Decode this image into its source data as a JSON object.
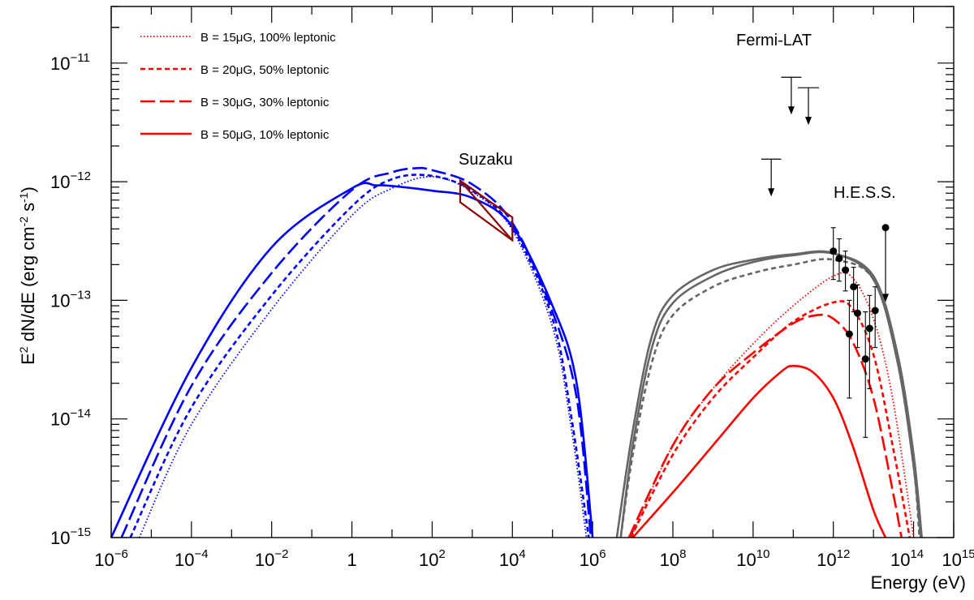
{
  "chart_data": {
    "type": "line",
    "title": "",
    "xlabel": "Energy (eV)",
    "ylabel": "E2 dN/dE (erg cm-2 s-1)",
    "xscale": "log",
    "yscale": "log",
    "xlim": [
      1e-06,
      1000000000000000.0
    ],
    "ylim": [
      1e-15,
      3e-11
    ],
    "x_ticks": [
      {
        "value": 1e-06,
        "label": "10",
        "exp": "−6"
      },
      {
        "value": 0.0001,
        "label": "10",
        "exp": "−4"
      },
      {
        "value": 0.01,
        "label": "10",
        "exp": "−2"
      },
      {
        "value": 1,
        "label": "1",
        "exp": ""
      },
      {
        "value": 100.0,
        "label": "10",
        "exp": "2"
      },
      {
        "value": 10000.0,
        "label": "10",
        "exp": "4"
      },
      {
        "value": 1000000.0,
        "label": "10",
        "exp": "6"
      },
      {
        "value": 100000000.0,
        "label": "10",
        "exp": "8"
      },
      {
        "value": 10000000000.0,
        "label": "10",
        "exp": "10"
      },
      {
        "value": 1000000000000.0,
        "label": "10",
        "exp": "12"
      },
      {
        "value": 100000000000000.0,
        "label": "10",
        "exp": "14"
      },
      {
        "value": 1000000000000000.0,
        "label": "10",
        "exp": "15"
      }
    ],
    "y_ticks": [
      {
        "value": 1e-15,
        "label": "10",
        "exp": "−15"
      },
      {
        "value": 1e-14,
        "label": "10",
        "exp": "−14"
      },
      {
        "value": 1e-13,
        "label": "10",
        "exp": "−13"
      },
      {
        "value": 1e-12,
        "label": "10",
        "exp": "−12"
      },
      {
        "value": 1e-11,
        "label": "10",
        "exp": "−11"
      }
    ],
    "legend": {
      "placement": "top-left",
      "entries": [
        {
          "text": "B = 15μG, 100% leptonic",
          "color": "#ff0000",
          "style": "dotted"
        },
        {
          "text": "B = 20μG, 50%  leptonic",
          "color": "#ff0000",
          "style": "short-dash"
        },
        {
          "text": "B = 30μG, 30%  leptonic",
          "color": "#ff0000",
          "style": "long-dash"
        },
        {
          "text": "B = 50μG, 10%  leptonic",
          "color": "#ff0000",
          "style": "solid"
        }
      ]
    },
    "annotations": {
      "suzaku": "Suzaku",
      "fermi": "Fermi-LAT",
      "hess": "H.E.S.S."
    },
    "series": [
      {
        "name": "Synchrotron B=15μG",
        "color": "#0000ff",
        "style": "dotted",
        "x": [
          5e-06,
          0.0001,
          0.01,
          1,
          10,
          100,
          1000,
          10000.0,
          100000.0,
          300000.0,
          700000.0
        ],
        "y": [
          1e-15,
          9e-15,
          8.4e-14,
          5.2e-13,
          8.8e-13,
          1.1e-12,
          8.2e-13,
          3.9e-13,
          6e-14,
          8e-15,
          1e-15
        ]
      },
      {
        "name": "Synchrotron B=20μG",
        "color": "#0000ff",
        "style": "short-dash",
        "x": [
          3e-06,
          0.0001,
          0.01,
          1,
          10,
          100,
          1000,
          10000.0,
          100000.0,
          300000.0,
          800000.0
        ],
        "y": [
          1e-15,
          1.25e-14,
          1.1e-13,
          6.2e-13,
          1.05e-12,
          1.12e-12,
          8.4e-13,
          4.1e-13,
          7e-14,
          1e-14,
          1e-15
        ]
      },
      {
        "name": "Synchrotron B=30μG",
        "color": "#0000ff",
        "style": "long-dash",
        "x": [
          1.8e-06,
          0.0001,
          0.01,
          1,
          10,
          40,
          100,
          1000,
          10000.0,
          100000.0,
          400000.0,
          900000.0
        ],
        "y": [
          1e-15,
          1.9e-14,
          1.7e-13,
          8.5e-13,
          1.2e-12,
          1.3e-12,
          1.25e-12,
          9.5e-13,
          4.5e-13,
          8e-14,
          1.5e-14,
          1e-15
        ]
      },
      {
        "name": "Synchrotron B=50μG",
        "color": "#0000ff",
        "style": "solid",
        "x": [
          1e-06,
          0.0001,
          0.01,
          1,
          4,
          10,
          100,
          1000,
          10000.0,
          100000.0,
          400000.0,
          1000000.0
        ],
        "y": [
          1e-15,
          2.7e-14,
          2.8e-13,
          8.8e-13,
          9.3e-13,
          9.2e-13,
          8.4e-13,
          7.3e-13,
          4.2e-13,
          9e-14,
          2e-14,
          1e-15
        ]
      },
      {
        "name": "IC B=15μG",
        "color": "#ff0000",
        "style": "dotted",
        "x": [
          9000000.0,
          100000000.0,
          1000000000.0,
          10000000000.0,
          100000000000.0,
          1000000000000.0,
          3000000000000.0,
          10000000000000.0,
          30000000000000.0,
          100000000000000.0
        ],
        "y": [
          1e-15,
          6e-15,
          1.8e-14,
          4.3e-14,
          9e-14,
          1.6e-13,
          1.55e-13,
          7e-14,
          1.5e-14,
          1e-15
        ]
      },
      {
        "name": "IC B=20μG",
        "color": "#ff0000",
        "style": "short-dash",
        "x": [
          9000000.0,
          100000000.0,
          1000000000.0,
          10000000000.0,
          100000000000.0,
          1000000000000.0,
          3000000000000.0,
          10000000000000.0,
          30000000000000.0,
          80000000000000.0
        ],
        "y": [
          1e-15,
          5e-15,
          1.5e-14,
          3.3e-14,
          6.6e-14,
          9.6e-14,
          8.5e-14,
          3.5e-14,
          6e-15,
          1e-15
        ]
      },
      {
        "name": "IC B=30μG",
        "color": "#ff0000",
        "style": "long-dash",
        "x": [
          8000000.0,
          100000000.0,
          1000000000.0,
          10000000000.0,
          100000000000.0,
          400000000000.0,
          1000000000000.0,
          3000000000000.0,
          10000000000000.0,
          30000000000000.0,
          50000000000000.0
        ],
        "y": [
          1e-15,
          6e-15,
          1.8e-14,
          3.6e-14,
          6.4e-14,
          7.5e-14,
          7e-14,
          4.5e-14,
          1.5e-14,
          2.5e-15,
          1e-15
        ]
      },
      {
        "name": "IC B=50μG",
        "color": "#ff0000",
        "style": "solid",
        "x": [
          10000000.0,
          100000000.0,
          1000000000.0,
          10000000000.0,
          50000000000.0,
          100000000000.0,
          300000000000.0,
          1000000000000.0,
          3000000000000.0,
          10000000000000.0,
          20000000000000.0
        ],
        "y": [
          1e-15,
          2.4e-15,
          6e-15,
          1.5e-14,
          2.5e-14,
          2.8e-14,
          2.5e-14,
          1.5e-14,
          6e-15,
          1.7e-15,
          1e-15
        ]
      },
      {
        "name": "Total gamma (grey solid)",
        "color": "#666666",
        "style": "solid",
        "x": [
          4000000.0,
          10000000.0,
          30000000.0,
          100000000.0,
          1000000000.0,
          10000000000.0,
          100000000000.0,
          1000000000000.0,
          10000000000000.0,
          40000000000000.0,
          100000000000000.0,
          150000000000000.0
        ],
        "y": [
          1e-15,
          8e-15,
          5e-14,
          1.1e-13,
          1.8e-13,
          2.2e-13,
          2.45e-13,
          2.5e-13,
          1.5e-13,
          3e-14,
          4e-15,
          1e-15
        ]
      },
      {
        "name": "Total gamma (grey solid 2)",
        "color": "#666666",
        "style": "solid",
        "x": [
          5000000.0,
          10000000.0,
          30000000.0,
          100000000.0,
          1000000000.0,
          10000000000.0,
          100000000000.0,
          1000000000000.0,
          10000000000000.0,
          40000000000000.0,
          100000000000000.0,
          160000000000000.0
        ],
        "y": [
          1e-15,
          6e-15,
          4e-14,
          9.5e-14,
          1.6e-13,
          2.1e-13,
          2.4e-13,
          2.48e-13,
          1.6e-13,
          3.5e-14,
          5e-15,
          1e-15
        ]
      },
      {
        "name": "Total gamma (grey dashed)",
        "color": "#666666",
        "style": "short-dash",
        "x": [
          5000000.0,
          10000000.0,
          30000000.0,
          100000000.0,
          1000000000.0,
          10000000000.0,
          100000000000.0,
          1000000000000.0,
          10000000000000.0,
          40000000000000.0,
          100000000000000.0,
          140000000000000.0
        ],
        "y": [
          1e-15,
          5e-15,
          3e-14,
          7.5e-14,
          1.3e-13,
          1.7e-13,
          2e-13,
          2.2e-13,
          1.5e-13,
          3e-14,
          4e-15,
          1e-15
        ]
      }
    ],
    "suzaku_bowtie": [
      {
        "x": 500,
        "y": 1.02e-12
      },
      {
        "x": 10000.0,
        "y": 5e-13
      },
      {
        "x": 10000.0,
        "y": 3.2e-13
      },
      {
        "x": 500,
        "y": 6.7e-13
      }
    ],
    "hess_points": [
      {
        "x": 1000000000000.0,
        "y": 2.6e-13,
        "lo": 1.5e-13,
        "hi": 4.1e-13
      },
      {
        "x": 1400000000000.0,
        "y": 2.25e-13,
        "lo": 1.45e-13,
        "hi": 3.3e-13
      },
      {
        "x": 2000000000000.0,
        "y": 1.8e-13,
        "lo": 1.2e-13,
        "hi": 2.6e-13
      },
      {
        "x": 3200000000000.0,
        "y": 1.3e-13,
        "lo": 8e-14,
        "hi": 1.9e-13
      },
      {
        "x": 4000000000000.0,
        "y": 7.8e-14,
        "lo": 4e-14,
        "hi": 1.35e-13
      },
      {
        "x": 2500000000000.0,
        "y": 5.2e-14,
        "lo": 1.5e-14,
        "hi": 1e-13
      },
      {
        "x": 6300000000000.0,
        "y": 3.2e-14,
        "lo": 7e-15,
        "hi": 8e-14
      },
      {
        "x": 8000000000000.0,
        "y": 5.8e-14,
        "lo": 1.8e-14,
        "hi": 1.1e-13
      },
      {
        "x": 11000000000000.0,
        "y": 8.2e-14,
        "lo": 4e-14,
        "hi": 1.3e-13
      }
    ],
    "hess_upper_limit": {
      "x": 20000000000000.0,
      "y": 4.1e-13,
      "arrow_to": 1e-13
    },
    "fermi_upper_limits": [
      {
        "x": 60000000000.0,
        "x_lo": 50000000000.0,
        "x_hi": 160000000000.0,
        "y": 7.6e-12
      },
      {
        "x": 170000000000.0,
        "x_lo": 130000000000.0,
        "x_hi": 440000000000.0,
        "y": 6.2e-12
      },
      {
        "x": 22000000000.0,
        "x_lo": 16000000000.0,
        "x_hi": 50000000000.0,
        "y": 1.55e-12
      }
    ]
  }
}
